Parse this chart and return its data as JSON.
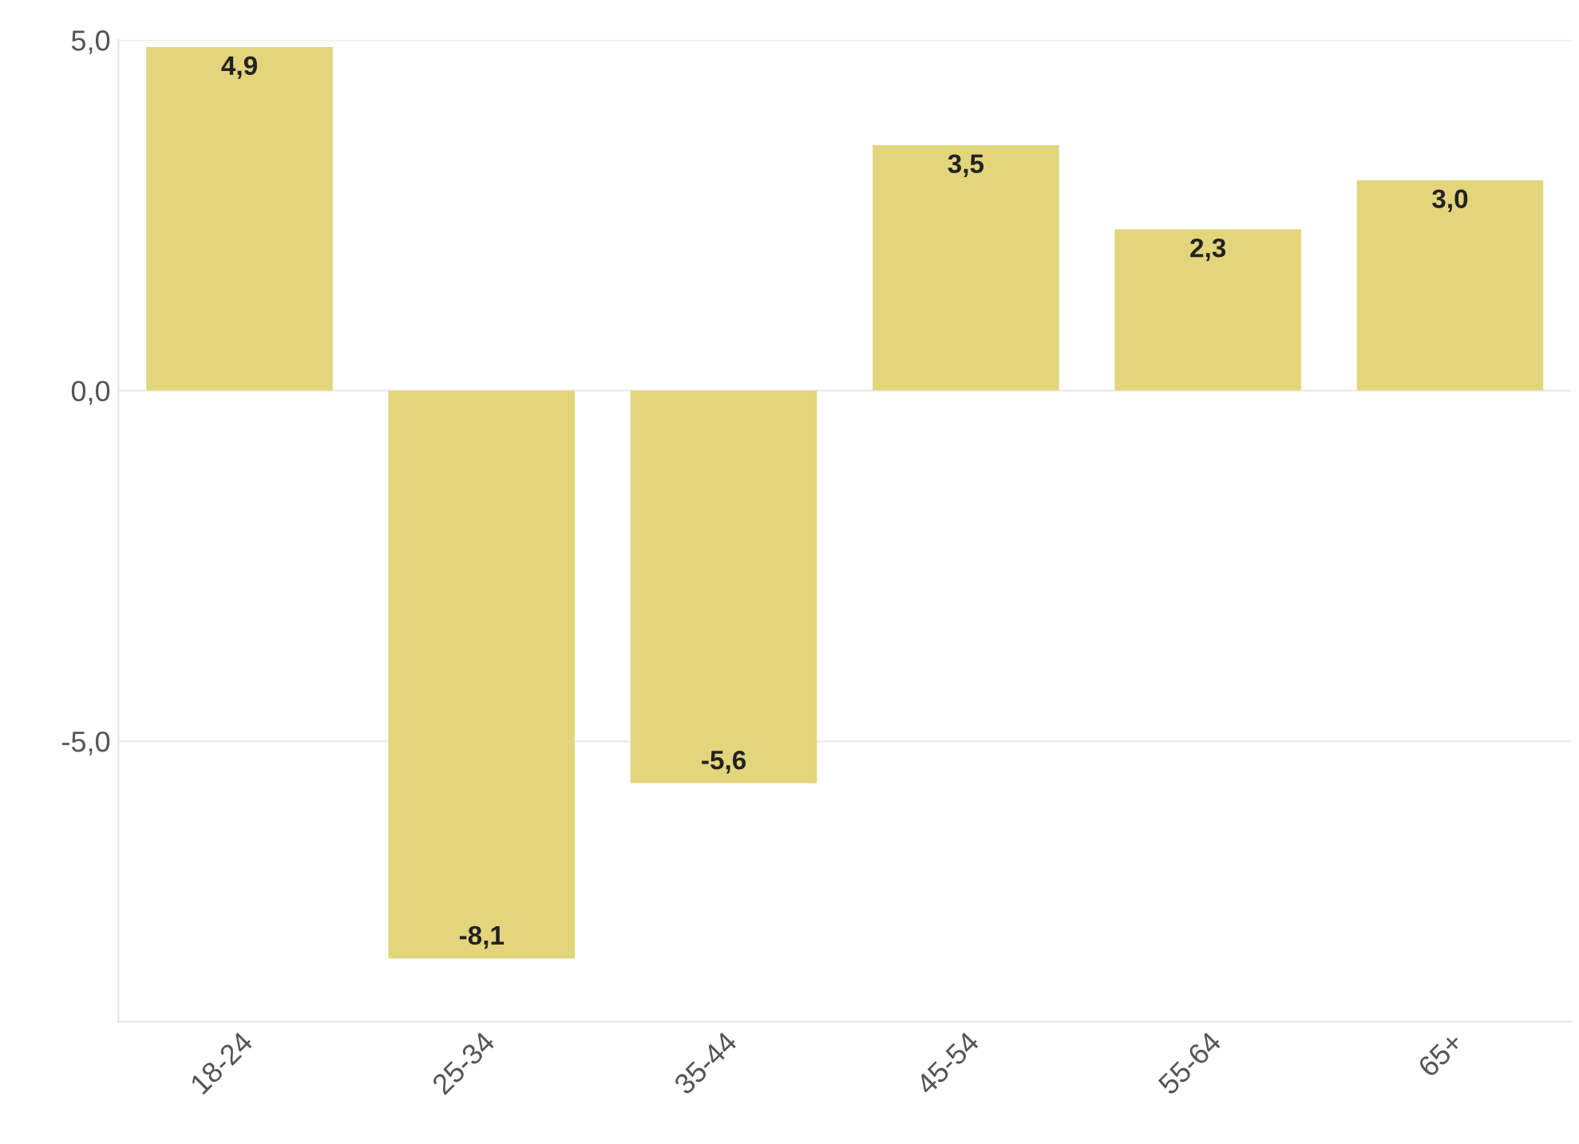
{
  "chart_data": {
    "type": "bar",
    "categories": [
      "18-24",
      "25-34",
      "35-44",
      "45-54",
      "55-64",
      "65+"
    ],
    "values": [
      4.9,
      -8.1,
      -5.6,
      3.5,
      2.3,
      3.0
    ],
    "value_labels": [
      "4,9",
      "-8,1",
      "-5,6",
      "3,5",
      "2,3",
      "3,0"
    ],
    "color": "#e2d57c",
    "ylim": [
      -9,
      5
    ],
    "yticks": [
      {
        "value": 5,
        "label": "5,0"
      },
      {
        "value": 0,
        "label": "0,0"
      },
      {
        "value": -5,
        "label": "-5,0"
      }
    ],
    "grid": "y"
  }
}
